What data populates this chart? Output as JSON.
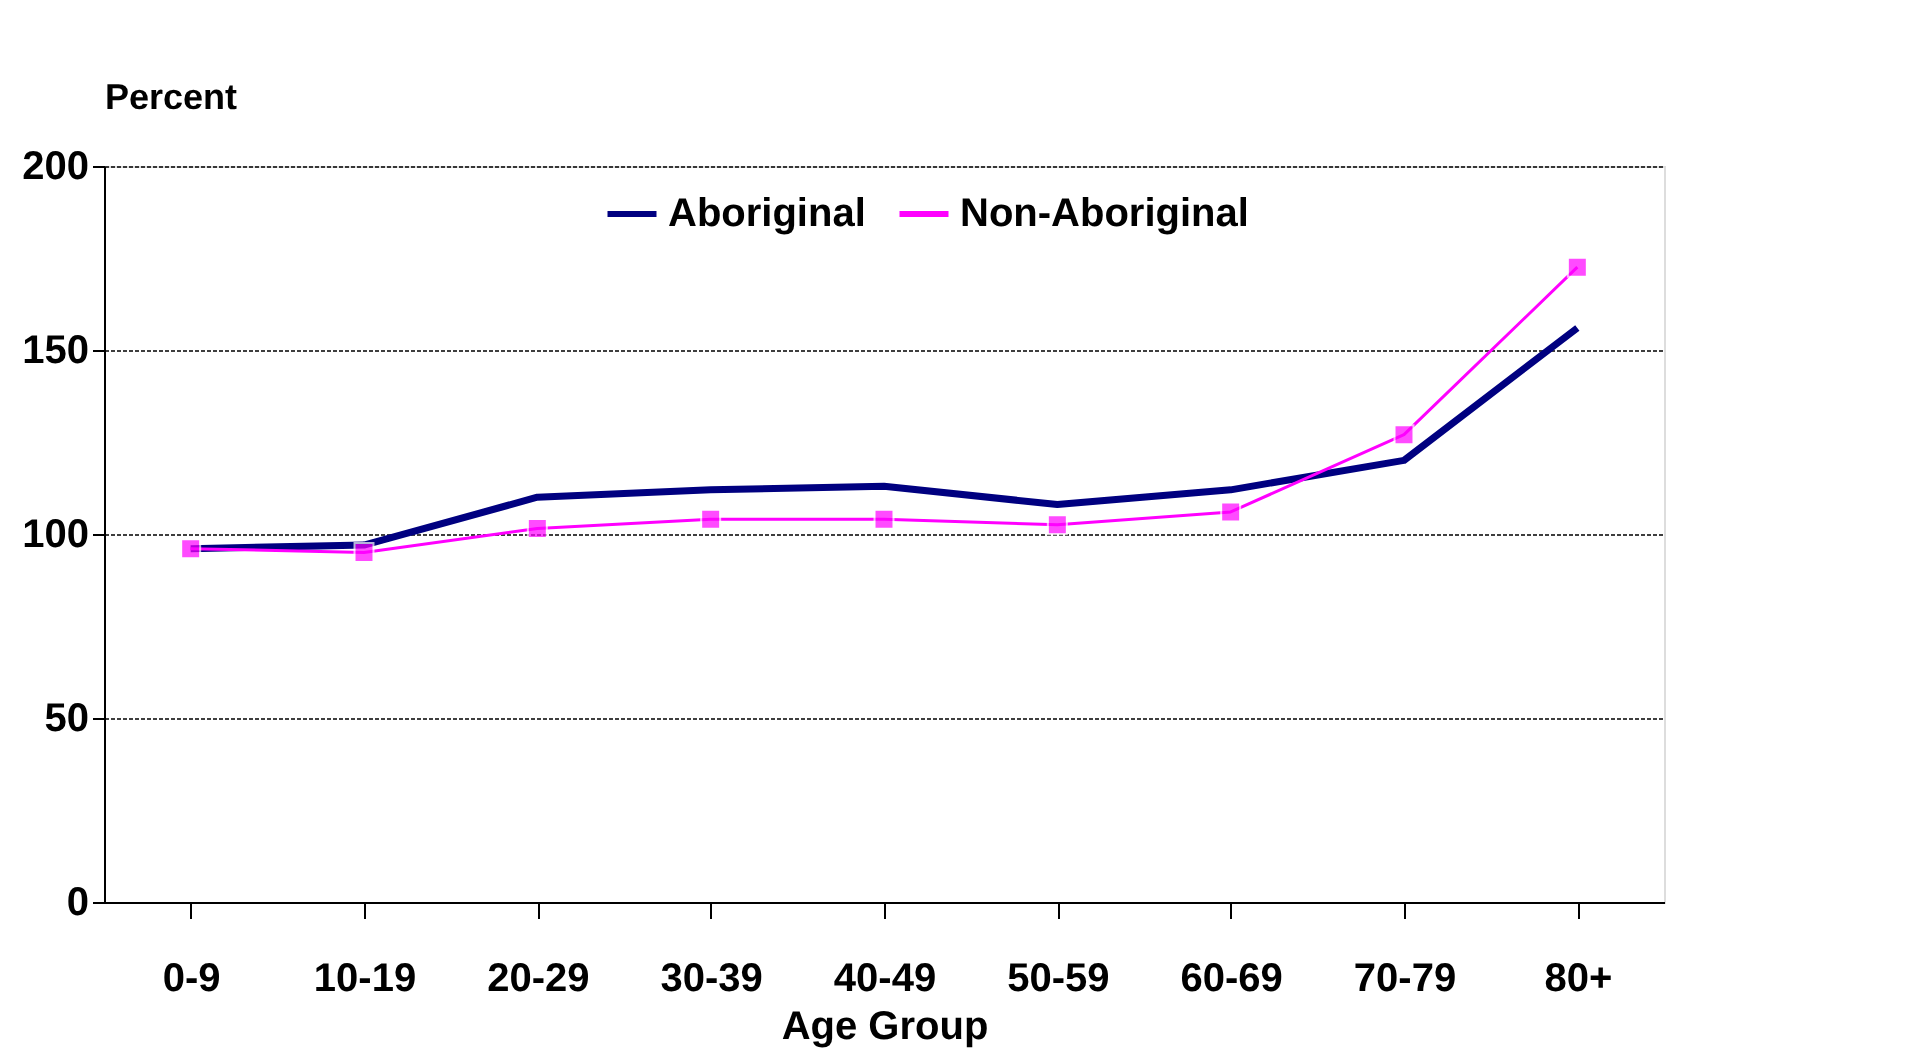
{
  "chart_data": {
    "type": "line",
    "xlabel": "Age Group",
    "ylabel": "Percent",
    "categories": [
      "0-9",
      "10-19",
      "20-29",
      "30-39",
      "40-49",
      "50-59",
      "60-69",
      "70-79",
      "80+"
    ],
    "series": [
      {
        "name": "Aboriginal",
        "color": "#000080",
        "marker": "none",
        "values": [
          96,
          97,
          110,
          112,
          113,
          108,
          112,
          120,
          156
        ]
      },
      {
        "name": "Non-Aboriginal",
        "color": "#ff00ff",
        "marker": "square",
        "values": [
          96,
          95,
          101.5,
          104,
          104,
          102.5,
          106,
          127,
          172.5
        ]
      }
    ],
    "ylim": [
      0,
      200
    ],
    "yticks": [
      0,
      50,
      100,
      150,
      200
    ],
    "grid": "y",
    "legend": "top",
    "line_style": "solid"
  }
}
